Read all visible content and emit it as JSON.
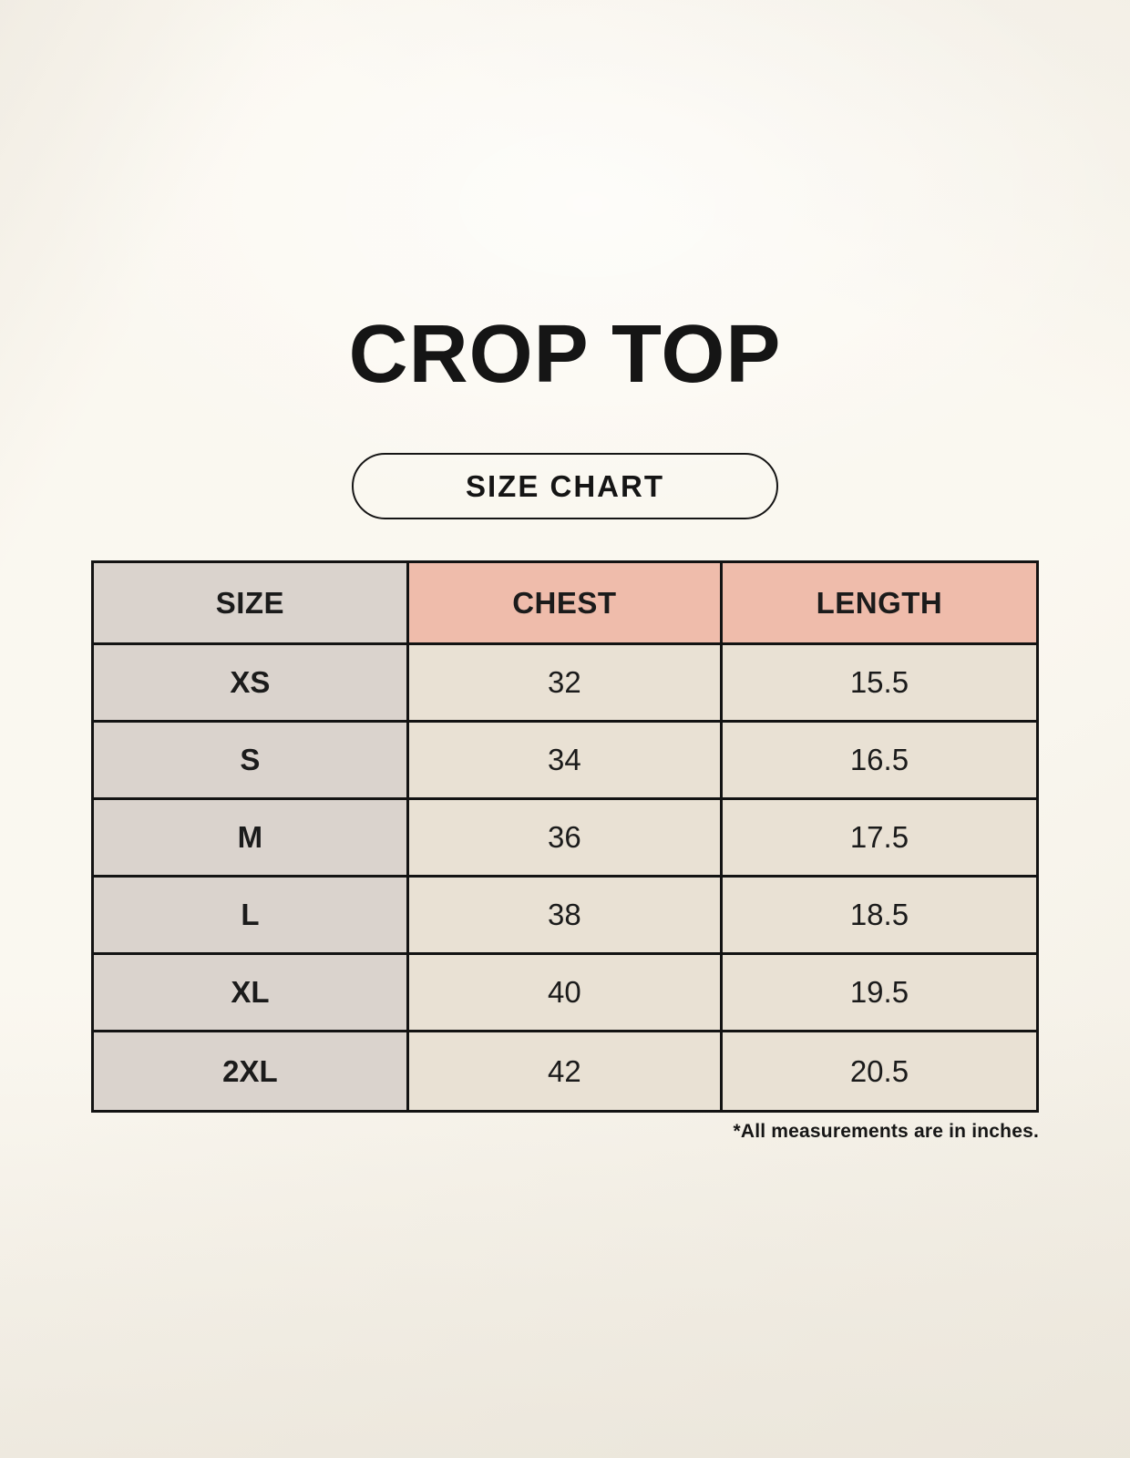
{
  "header": {
    "title": "CROP TOP",
    "badge_label": "SIZE CHART"
  },
  "chart_data": {
    "type": "table",
    "title": "CROP TOP",
    "badge": "SIZE CHART",
    "columns": [
      "SIZE",
      "CHEST",
      "LENGTH"
    ],
    "rows": [
      [
        "XS",
        "32",
        "15.5"
      ],
      [
        "S",
        "34",
        "16.5"
      ],
      [
        "M",
        "36",
        "17.5"
      ],
      [
        "L",
        "38",
        "18.5"
      ],
      [
        "XL",
        "40",
        "19.5"
      ],
      [
        "2XL",
        "42",
        "20.5"
      ]
    ],
    "footnote": "*All measurements are in inches.",
    "units": "inches"
  },
  "colors": {
    "background": "#f6f2e9",
    "table_border": "#131313",
    "size_column_bg": "#dad3cd",
    "measure_header_bg": "#efbcab",
    "data_cell_bg": "#e9e1d4",
    "text": "#1b1b1b"
  }
}
